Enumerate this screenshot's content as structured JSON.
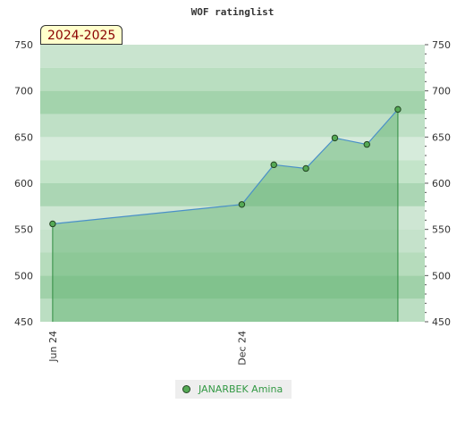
{
  "chart_data": {
    "type": "area",
    "title": "WOF ratinglist",
    "period_label": "2024-2025",
    "ylim": [
      450,
      750
    ],
    "yticks": [
      450,
      500,
      550,
      600,
      650,
      700,
      750
    ],
    "x_tick_labels": [
      {
        "date": "2024-06-01",
        "label": "Jun 24"
      },
      {
        "date": "2024-12-01",
        "label": "Dec 24"
      }
    ],
    "xlim": [
      "2024-05-20",
      "2025-05-27"
    ],
    "series": [
      {
        "name": "JANARBEK Amina",
        "color": "#55aa55",
        "points": [
          {
            "x": "2024-06-01",
            "y": 556
          },
          {
            "x": "2024-12-01",
            "y": 577
          },
          {
            "x": "2025-01-01",
            "y": 620
          },
          {
            "x": "2025-02-01",
            "y": 616
          },
          {
            "x": "2025-03-01",
            "y": 649
          },
          {
            "x": "2025-04-01",
            "y": 642
          },
          {
            "x": "2025-05-01",
            "y": 680
          }
        ]
      }
    ],
    "legend_position": "bottom-center",
    "grid": "horizontal bands"
  }
}
